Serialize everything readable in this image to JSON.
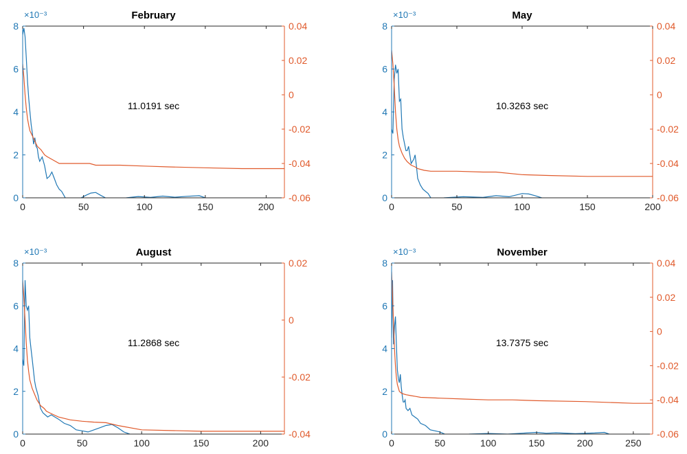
{
  "colors": {
    "left": "#1f77b4",
    "right": "#e0592a",
    "axes": "#262626"
  },
  "chart_data": [
    {
      "type": "line",
      "title": "February",
      "annotation": "11.0191 sec",
      "exponent_label": "×10⁻³",
      "xlim": [
        0,
        215
      ],
      "xticks": [
        0,
        50,
        100,
        150,
        200
      ],
      "ylim_left": [
        0,
        8
      ],
      "yticks_left": [
        0,
        2,
        4,
        6,
        8
      ],
      "ylim_right": [
        -0.06,
        0.04
      ],
      "yticks_right": [
        -0.06,
        -0.04,
        -0.02,
        0,
        0.02,
        0.04
      ],
      "series": [
        {
          "axis": "left",
          "x": [
            0,
            1,
            2,
            3,
            4,
            5,
            6,
            7,
            8,
            9,
            10,
            11,
            12,
            13,
            14,
            16,
            18,
            20,
            22,
            24,
            26,
            28,
            30,
            32,
            34,
            35
          ],
          "y": [
            7.6,
            7.9,
            7.5,
            6.5,
            5.4,
            4.6,
            4.0,
            3.4,
            3.0,
            2.5,
            2.8,
            2.4,
            2.3,
            1.9,
            1.7,
            1.9,
            1.5,
            0.9,
            1.0,
            1.2,
            0.9,
            0.6,
            0.4,
            0.3,
            0.1,
            0.0
          ]
        },
        {
          "axis": "left",
          "x": [
            48,
            52,
            56,
            60,
            64,
            68
          ],
          "y": [
            0.0,
            0.12,
            0.22,
            0.25,
            0.12,
            0.0
          ]
        },
        {
          "axis": "left",
          "x": [
            85,
            95,
            105,
            115,
            125,
            135,
            145,
            150
          ],
          "y": [
            0.0,
            0.06,
            0.02,
            0.08,
            0.03,
            0.07,
            0.1,
            0.0
          ]
        },
        {
          "axis": "right",
          "x": [
            0,
            1,
            2,
            3,
            4,
            5,
            6,
            8,
            10,
            12,
            15,
            18,
            20,
            25,
            30,
            40,
            50,
            55,
            60,
            80,
            100,
            120,
            150,
            180,
            200,
            215
          ],
          "y": [
            0.018,
            0.01,
            0.0,
            -0.008,
            -0.014,
            -0.018,
            -0.021,
            -0.024,
            -0.027,
            -0.03,
            -0.032,
            -0.035,
            -0.036,
            -0.038,
            -0.04,
            -0.04,
            -0.04,
            -0.04,
            -0.041,
            -0.041,
            -0.0415,
            -0.042,
            -0.0425,
            -0.043,
            -0.043,
            -0.043
          ]
        }
      ]
    },
    {
      "type": "line",
      "title": "May",
      "annotation": "10.3263 sec",
      "exponent_label": "×10⁻³",
      "xlim": [
        0,
        200
      ],
      "xticks": [
        0,
        50,
        100,
        150,
        200
      ],
      "ylim_left": [
        0,
        8
      ],
      "yticks_left": [
        0,
        2,
        4,
        6,
        8
      ],
      "ylim_right": [
        -0.06,
        0.04
      ],
      "yticks_right": [
        -0.06,
        -0.04,
        -0.02,
        0,
        0.02,
        0.04
      ],
      "series": [
        {
          "axis": "left",
          "x": [
            0,
            1,
            2,
            3,
            4,
            5,
            6,
            7,
            8,
            9,
            10,
            11,
            12,
            13,
            14,
            15,
            16,
            17,
            18,
            19,
            20,
            22,
            24,
            26,
            28,
            30
          ],
          "y": [
            3.2,
            3.0,
            5.5,
            6.2,
            5.8,
            6.0,
            4.5,
            4.6,
            3.2,
            2.8,
            2.5,
            2.2,
            2.2,
            2.4,
            2.0,
            1.6,
            1.7,
            1.8,
            2.0,
            1.5,
            0.9,
            0.6,
            0.4,
            0.3,
            0.2,
            0.0
          ]
        },
        {
          "axis": "left",
          "x": [
            40,
            55,
            70,
            80,
            90,
            100,
            105,
            110,
            115
          ],
          "y": [
            0.0,
            0.05,
            0.02,
            0.1,
            0.05,
            0.2,
            0.18,
            0.1,
            0.0
          ]
        },
        {
          "axis": "right",
          "x": [
            0,
            1,
            2,
            3,
            4,
            5,
            6,
            8,
            10,
            12,
            15,
            18,
            20,
            25,
            30,
            50,
            70,
            80,
            100,
            120,
            150,
            170,
            200
          ],
          "y": [
            0.026,
            0.018,
            0.005,
            -0.01,
            -0.02,
            -0.026,
            -0.03,
            -0.034,
            -0.037,
            -0.039,
            -0.041,
            -0.042,
            -0.043,
            -0.044,
            -0.0445,
            -0.0445,
            -0.045,
            -0.045,
            -0.0465,
            -0.047,
            -0.0475,
            -0.0475,
            -0.0475
          ]
        }
      ]
    },
    {
      "type": "line",
      "title": "August",
      "annotation": "11.2868 sec",
      "exponent_label": "×10⁻³",
      "xlim": [
        0,
        220
      ],
      "xticks": [
        0,
        50,
        100,
        150,
        200
      ],
      "ylim_left": [
        0,
        8
      ],
      "yticks_left": [
        0,
        2,
        4,
        6,
        8
      ],
      "ylim_right": [
        -0.04,
        0.02
      ],
      "yticks_right": [
        -0.04,
        -0.02,
        0,
        0.02
      ],
      "series": [
        {
          "axis": "left",
          "x": [
            0,
            1,
            2,
            3,
            4,
            5,
            6,
            7,
            8,
            9,
            10,
            11,
            12,
            13,
            14,
            15,
            17,
            19,
            21,
            24,
            27,
            30,
            35,
            40,
            45,
            50,
            55,
            60,
            65,
            70,
            75,
            80,
            85,
            90
          ],
          "y": [
            3.5,
            3.2,
            7.2,
            6.0,
            5.8,
            6.0,
            4.5,
            4.0,
            3.5,
            3.0,
            2.5,
            2.2,
            2.0,
            1.8,
            1.5,
            1.2,
            1.0,
            0.9,
            0.8,
            0.9,
            0.8,
            0.7,
            0.5,
            0.4,
            0.2,
            0.15,
            0.1,
            0.2,
            0.3,
            0.4,
            0.45,
            0.3,
            0.1,
            0.0
          ]
        },
        {
          "axis": "right",
          "x": [
            0,
            1,
            2,
            3,
            4,
            5,
            6,
            8,
            10,
            12,
            15,
            18,
            20,
            25,
            30,
            40,
            50,
            60,
            70,
            80,
            100,
            150,
            200,
            220
          ],
          "y": [
            0.014,
            0.008,
            0.0,
            -0.008,
            -0.014,
            -0.018,
            -0.021,
            -0.024,
            -0.026,
            -0.028,
            -0.03,
            -0.031,
            -0.032,
            -0.033,
            -0.034,
            -0.035,
            -0.0355,
            -0.0358,
            -0.036,
            -0.037,
            -0.0385,
            -0.039,
            -0.039,
            -0.039
          ]
        }
      ]
    },
    {
      "type": "line",
      "title": "November",
      "annotation": "13.7375 sec",
      "exponent_label": "×10⁻³",
      "xlim": [
        0,
        270
      ],
      "xticks": [
        0,
        50,
        100,
        150,
        200,
        250
      ],
      "ylim_left": [
        0,
        8
      ],
      "yticks_left": [
        0,
        2,
        4,
        6,
        8
      ],
      "ylim_right": [
        -0.06,
        0.04
      ],
      "yticks_right": [
        -0.06,
        -0.04,
        -0.02,
        0,
        0.02,
        0.04
      ],
      "series": [
        {
          "axis": "left",
          "x": [
            0,
            1,
            2,
            3,
            4,
            5,
            6,
            7,
            8,
            9,
            10,
            11,
            12,
            13,
            14,
            15,
            17,
            19,
            21,
            24,
            27,
            30,
            35,
            40,
            45,
            50,
            55
          ],
          "y": [
            4.5,
            7.2,
            4.2,
            5.0,
            5.5,
            4.2,
            3.0,
            2.6,
            2.4,
            2.8,
            2.2,
            1.8,
            1.5,
            1.5,
            1.6,
            1.2,
            1.1,
            1.2,
            0.9,
            0.8,
            0.7,
            0.5,
            0.4,
            0.2,
            0.15,
            0.1,
            0.0
          ]
        },
        {
          "axis": "left",
          "x": [
            80,
            100,
            120,
            150,
            160,
            170,
            190,
            210,
            220,
            225
          ],
          "y": [
            0.0,
            0.03,
            0.0,
            0.08,
            0.04,
            0.06,
            0.02,
            0.05,
            0.08,
            0.0
          ]
        },
        {
          "axis": "right",
          "x": [
            0,
            1,
            2,
            3,
            4,
            5,
            6,
            8,
            10,
            12,
            15,
            20,
            25,
            30,
            50,
            75,
            100,
            125,
            150,
            200,
            250,
            270
          ],
          "y": [
            0.035,
            0.02,
            0.005,
            -0.01,
            -0.02,
            -0.027,
            -0.031,
            -0.035,
            -0.036,
            -0.0365,
            -0.037,
            -0.0375,
            -0.038,
            -0.0385,
            -0.039,
            -0.0395,
            -0.04,
            -0.04,
            -0.0405,
            -0.041,
            -0.042,
            -0.042
          ]
        }
      ]
    }
  ]
}
